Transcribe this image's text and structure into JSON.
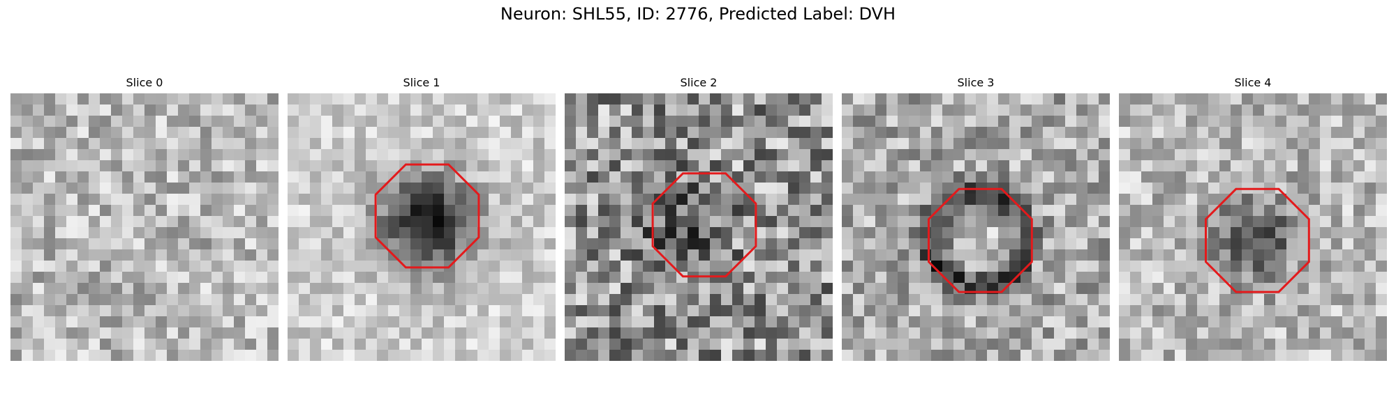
{
  "figure": {
    "title": "Neuron: SHL55, ID: 2776, Predicted Label: DVH"
  },
  "panels": [
    {
      "title": "Slice 0",
      "roi": false,
      "roi_color": "#e31a1c"
    },
    {
      "title": "Slice 1",
      "roi": true,
      "roi_color": "#e31a1c"
    },
    {
      "title": "Slice 2",
      "roi": true,
      "roi_color": "#e31a1c"
    },
    {
      "title": "Slice 3",
      "roi": true,
      "roi_color": "#e31a1c"
    },
    {
      "title": "Slice 4",
      "roi": true,
      "roi_color": "#e31a1c"
    }
  ],
  "colors": {
    "colormap": "grayscale",
    "roi": "#e31a1c"
  }
}
